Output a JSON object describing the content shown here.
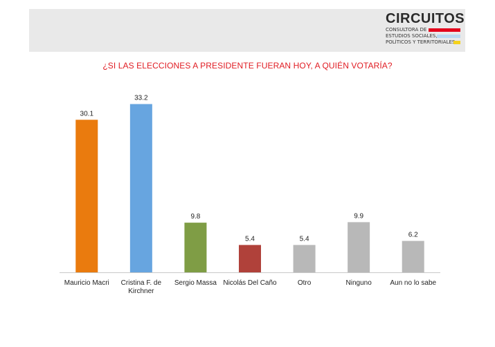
{
  "logo": {
    "name": "CIRCUITOS",
    "line1": "CONSULTORA DE",
    "line2": "ESTUDIOS SOCIALES,",
    "line3": "POLÍTICOS Y TERRITORIALES",
    "bar_colors": [
      "#e3001b",
      "#b9d9f2",
      "#f5d21c"
    ]
  },
  "chart_data": {
    "type": "bar",
    "title": "¿SI LAS ELECCIONES A PRESIDENTE FUERAN HOY, A QUIÉN VOTARÍA?",
    "xlabel": "",
    "ylabel": "",
    "ylim": [
      0,
      36
    ],
    "grid": false,
    "categories": [
      [
        "Mauricio Macri"
      ],
      [
        "Cristina F. de",
        "Kirchner"
      ],
      [
        "Sergio Massa"
      ],
      [
        "Nicolás Del Caño"
      ],
      [
        "Otro"
      ],
      [
        "Ninguno"
      ],
      [
        "Aun no lo sabe"
      ]
    ],
    "values": [
      30.1,
      33.2,
      9.8,
      5.4,
      5.4,
      9.9,
      6.2
    ],
    "colors": [
      "#ea7b0e",
      "#67a5e0",
      "#7f9d45",
      "#b0413a",
      "#b8b8b8",
      "#b8b8b8",
      "#b8b8b8"
    ]
  }
}
